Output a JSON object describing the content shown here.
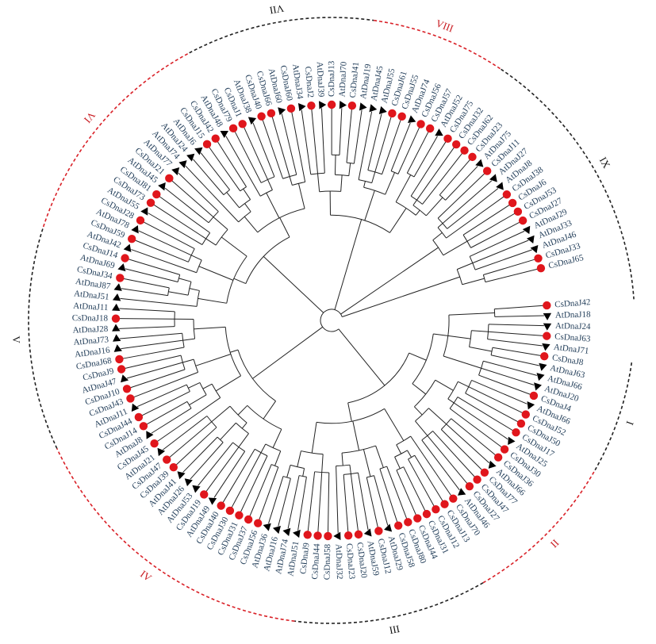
{
  "colors": {
    "background": "#ffffff",
    "branch": "#222222",
    "leaf_text": "#1f3b57",
    "dot": "#e0161c",
    "triangle": "#000000",
    "arc_red": "#d92027",
    "arc_black": "#222222",
    "label_red": "#c8181e",
    "label_black": "#111111"
  },
  "marker_types": {
    "dot": "CsDnaJ",
    "triangle": "AtDnaJ"
  },
  "leaves": [
    "CsDnaJ42",
    "AtDnaJ18",
    "AtDnaJ24",
    "CsDnaJ63",
    "AtDnaJ71",
    "CsDnaJ8",
    "AtDnaJ63",
    "AtDnaJ66",
    "AtDnaJ20",
    "CsDnaJ4",
    "AtDnaJ66",
    "CsDnaJ52",
    "CsDnaJ50",
    "CsDnaJ17",
    "AtDnaJ25",
    "CsDnaJ30",
    "CsDnaJ36",
    "AtDnaJ66",
    "CsDnaJ77",
    "CsDnaJ47",
    "CsDnaJ27",
    "AtDnaJ46",
    "CsDnaJ70",
    "CsDnaJ13",
    "CsDnaJ12",
    "CsDnaJ31",
    "CsDnaJ44",
    "CsDnaJ80",
    "CsDnaJ58",
    "AtDnaJ29",
    "CsDnaJ12",
    "AtDnaJ59",
    "CsDnaJ20",
    "CsDnaJ23",
    "AtDnaJ32",
    "CsDnaJ58",
    "CsDnaJ44",
    "CsDnaJ9",
    "AtDnaJ51",
    "AtDnaJ74",
    "AtDnaJ16",
    "AtDnaJ36",
    "CsDnaJ56",
    "CsDnaJ37",
    "CsDnaJ31",
    "CsDnaJ30",
    "CsDnaJ40",
    "AtDnaJ49",
    "CsDnaJ19",
    "AtDnaJ53",
    "AtDnaJ26",
    "AtDnaJ41",
    "CsDnaJ39",
    "CsDnaJ47",
    "AtDnaJ21",
    "CsDnaJ45",
    "AtDnaJ8",
    "CsDnaJ14",
    "CsDnaJ44",
    "AtDnaJ11",
    "CsDnaJ43",
    "CsDnaJ10",
    "AtDnaJ47",
    "CsDnaJ9",
    "CsDnaJ68",
    "AtDnaJ16",
    "AtDnaJ73",
    "AtDnaJ28",
    "CsDnaJ18",
    "AtDnaJ11",
    "AtDnaJ51",
    "AtDnaJ87",
    "CsDnaJ34",
    "AtDnaJ69",
    "CsDnaJ14",
    "AtDnaJ42",
    "CsDnaJ59",
    "AtDnaJ78",
    "CsDnaJ28",
    "AtDnaJ55",
    "CsDnaJ73",
    "CsDnaJ81",
    "AtDnaJ45",
    "CsDnaJ21",
    "AtDnaJ77",
    "AtDnaJ74",
    "AtDnaJ24",
    "AtDnaJ6",
    "CsDnaJ15",
    "CsDnaJ42",
    "AtDnaJ48",
    "CsDnaJ79",
    "CsDnaJ1",
    "AtDnaJ38",
    "CsDnaJ40",
    "CsDnaJ66",
    "AtDnaJ60",
    "CsDnaJ60",
    "AtDnaJ34",
    "CsDnaJ2",
    "AtDnaJ39",
    "CsDnaJ13",
    "AtDnaJ70",
    "CsDnaJ41",
    "AtDnaJ19",
    "AtDnaJ45",
    "AtDnaJ55",
    "CsDnaJ61",
    "CsDnaJ55",
    "AtDnaJ74",
    "CsDnaJ56",
    "CsDnaJ57",
    "AtDnaJ52",
    "CsDnaJ75",
    "CsDnaJ32",
    "CsDnaJ62",
    "CsDnaJ23",
    "AtDnaJ75",
    "CsDnaJ11",
    "AtDnaJ27",
    "AtDnaJ8",
    "CsDnaJ38",
    "CsDnaJ6",
    "CsDnaJ53",
    "CsDnaJ27",
    "AtDnaJ29",
    "AtDnaJ33",
    "AtDnaJ46",
    "CsDnaJ33",
    "CsDnaJ65"
  ],
  "groups": [
    {
      "label": "I",
      "color": "#111111",
      "arc_color": "#222222"
    },
    {
      "label": "II",
      "color": "#c8181e",
      "arc_color": "#d92027"
    },
    {
      "label": "III",
      "color": "#111111",
      "arc_color": "#222222"
    },
    {
      "label": "IV",
      "color": "#c8181e",
      "arc_color": "#d92027"
    },
    {
      "label": "V",
      "color": "#111111",
      "arc_color": "#222222"
    },
    {
      "label": "VI",
      "color": "#c8181e",
      "arc_color": "#d92027"
    },
    {
      "label": "VII",
      "color": "#111111",
      "arc_color": "#222222"
    },
    {
      "label": "VIII",
      "color": "#c8181e",
      "arc_color": "#d92027"
    },
    {
      "label": "IX",
      "color": "#111111",
      "arc_color": "#222222"
    }
  ]
}
